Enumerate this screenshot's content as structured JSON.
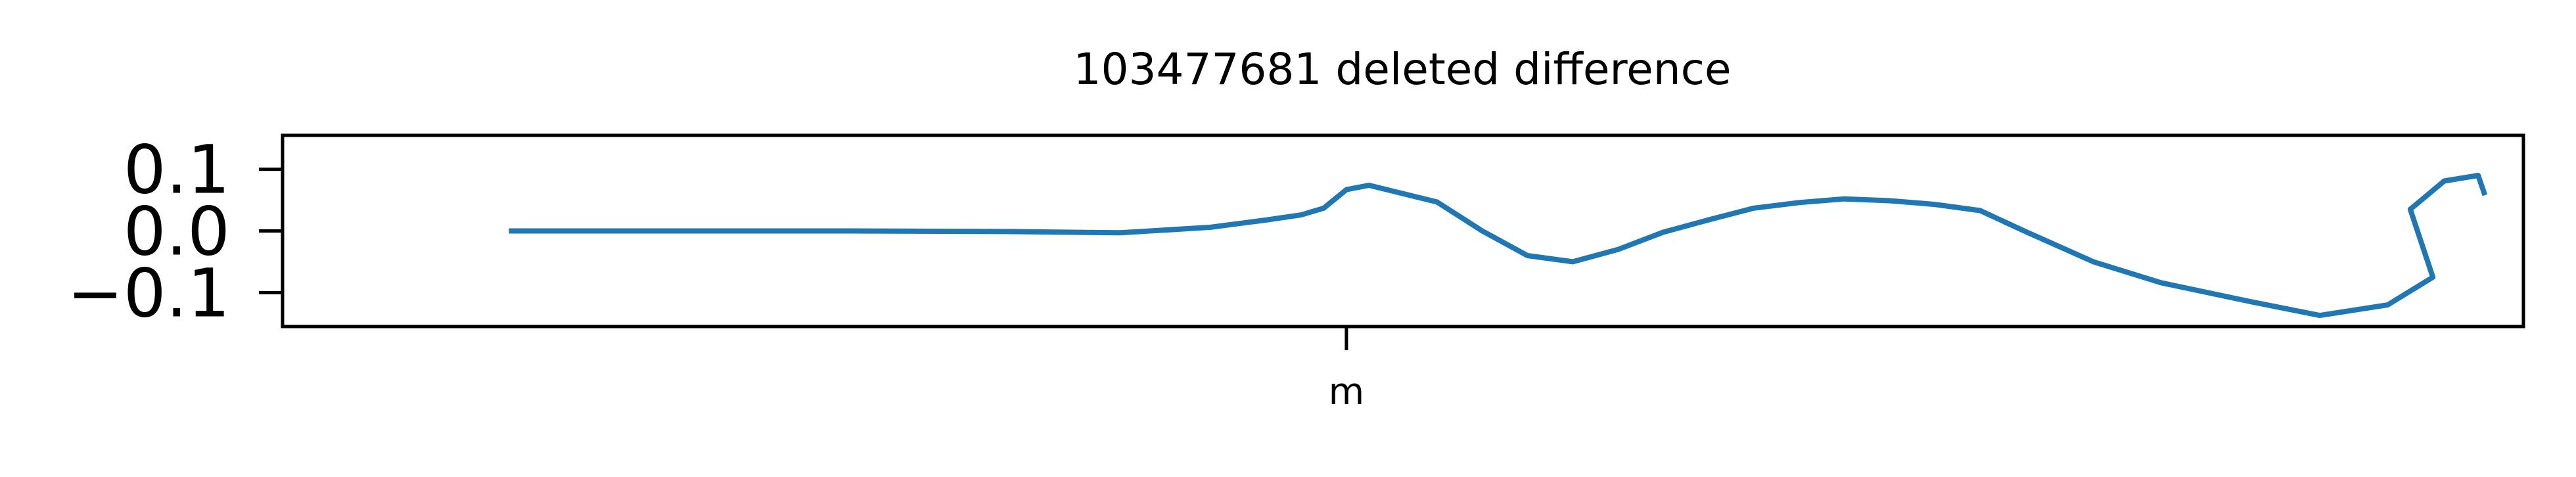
{
  "chart_data": {
    "type": "line",
    "title": "103477681 deleted difference",
    "xlabel": "",
    "ylabel": "",
    "x_ticks": [
      {
        "value": 0,
        "label": "m"
      }
    ],
    "y_ticks": [
      {
        "value": 0.1,
        "label": "0.1"
      },
      {
        "value": 0.0,
        "label": "0.0"
      },
      {
        "value": -0.1,
        "label": "−0.1"
      }
    ],
    "xlim": [
      -0.47,
      0.52
    ],
    "ylim": [
      -0.155,
      0.155
    ],
    "grid": false,
    "series": [
      {
        "color": "#1f77b4",
        "x": [
          -0.37,
          -0.3,
          -0.22,
          -0.15,
          -0.1,
          -0.06,
          -0.035,
          -0.02,
          -0.01,
          0.0,
          0.01,
          0.02,
          0.04,
          0.06,
          0.08,
          0.1,
          0.12,
          0.14,
          0.16,
          0.18,
          0.2,
          0.22,
          0.24,
          0.26,
          0.28,
          0.3,
          0.33,
          0.36,
          0.4,
          0.43,
          0.46,
          0.48,
          0.47,
          0.485,
          0.5,
          0.503
        ],
        "y": [
          0.0,
          0.0,
          0.0,
          -0.001,
          -0.003,
          0.006,
          0.018,
          0.026,
          0.037,
          0.067,
          0.074,
          0.065,
          0.047,
          0.0,
          -0.04,
          -0.05,
          -0.03,
          -0.002,
          0.018,
          0.037,
          0.046,
          0.052,
          0.049,
          0.043,
          0.033,
          -0.001,
          -0.05,
          -0.084,
          -0.115,
          -0.137,
          -0.12,
          -0.075,
          0.035,
          0.081,
          0.09,
          0.058
        ]
      }
    ]
  }
}
